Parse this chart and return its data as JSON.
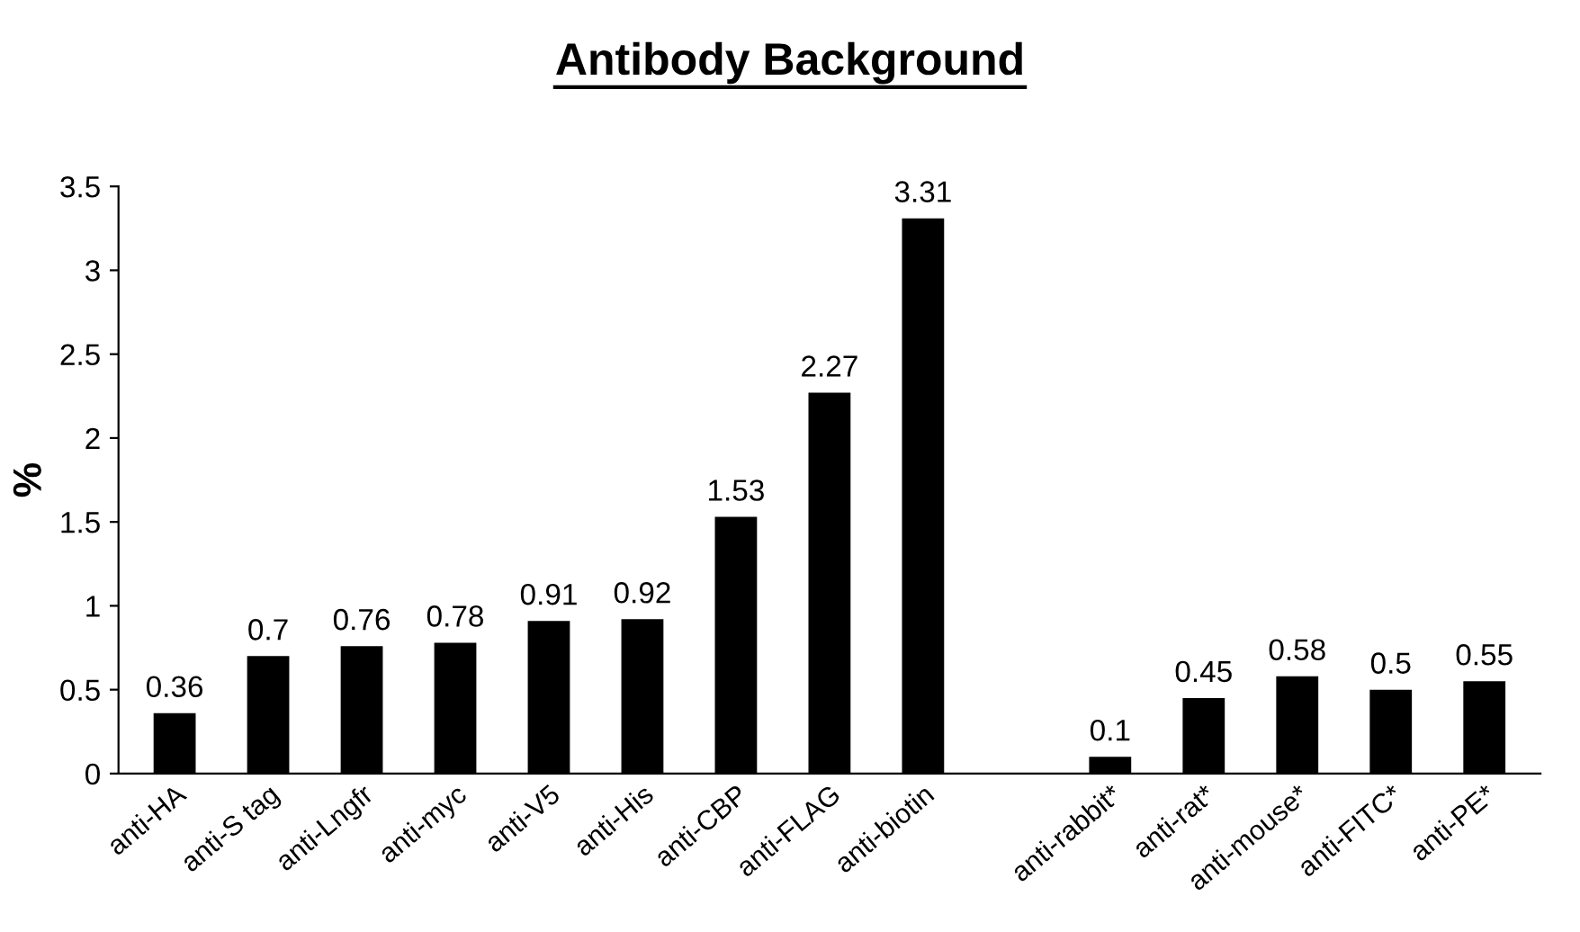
{
  "chart_data": {
    "type": "bar",
    "title": "Antibody Background",
    "ylabel": "%",
    "categories": [
      "anti-HA",
      "anti-S tag",
      "anti-Lngfr",
      "anti-myc",
      "anti-V5",
      "anti-His",
      "anti-CBP",
      "anti-FLAG",
      "anti-biotin",
      null,
      "anti-rabbit*",
      "anti-rat*",
      "anti-mouse*",
      "anti-FITC*",
      "anti-PE*"
    ],
    "values": [
      0.36,
      0.7,
      0.76,
      0.78,
      0.91,
      0.92,
      1.53,
      2.27,
      3.31,
      null,
      0.1,
      0.45,
      0.58,
      0.5,
      0.55
    ],
    "color": "#000000",
    "ylim": [
      0,
      3.5
    ],
    "yticks": [
      0,
      0.5,
      1,
      1.5,
      2,
      2.5,
      3,
      3.5
    ],
    "grid": false,
    "data_labels": true
  }
}
